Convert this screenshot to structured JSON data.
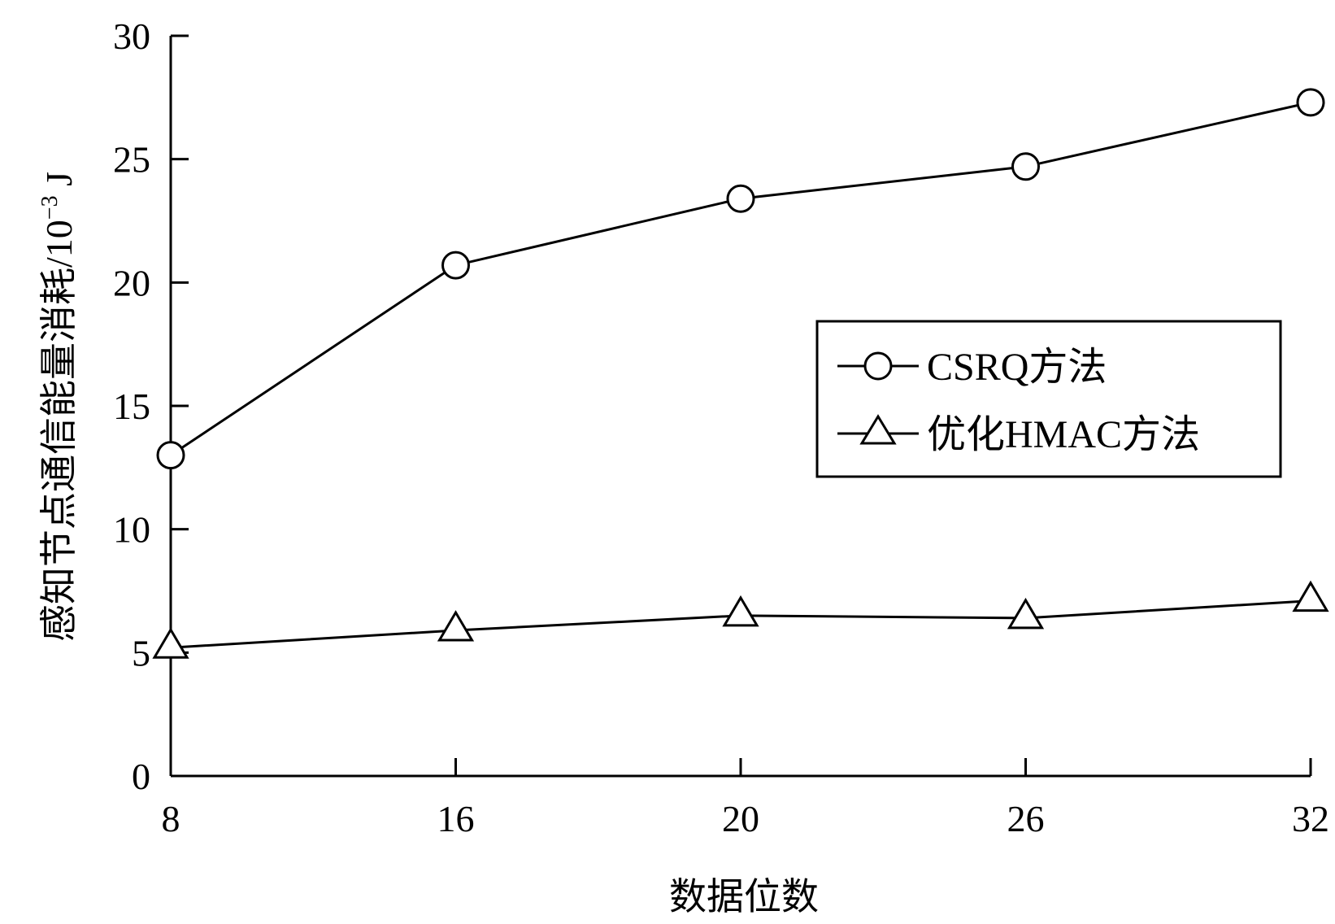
{
  "chart_data": {
    "type": "line",
    "categories": [
      "8",
      "16",
      "20",
      "26",
      "32"
    ],
    "series": [
      {
        "name": "CSRQ方法",
        "marker": "circle",
        "values": [
          13.0,
          20.7,
          23.4,
          24.7,
          27.3
        ]
      },
      {
        "name": "优化HMAC方法",
        "marker": "triangle",
        "values": [
          5.2,
          5.9,
          6.5,
          6.4,
          7.1
        ]
      }
    ],
    "xlabel": "数据位数",
    "ylabel": "感知节点通信能量消耗/10",
    "ylabel_exponent": "−3",
    "ylabel_unit": " J",
    "ylim": [
      0,
      30
    ],
    "yticks": [
      0,
      5,
      10,
      15,
      20,
      25,
      30
    ],
    "grid": false,
    "legend_position": "right",
    "line_color": "#000000"
  }
}
